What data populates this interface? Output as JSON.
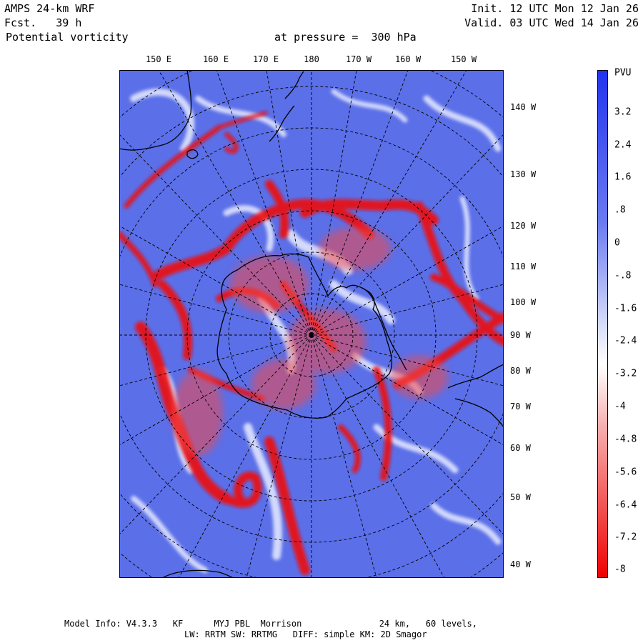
{
  "header": {
    "model": "AMPS 24-km WRF",
    "forecast": "Fcst.   39 h",
    "variable": "Potential vorticity",
    "level": "at pressure =  300 hPa",
    "init": "Init. 12 UTC Mon 12 Jan 26",
    "valid": "Valid. 03 UTC Wed 14 Jan 26"
  },
  "map": {
    "projection": "south-polar-stereographic",
    "longitude_labels": [
      "150 E",
      "160 E",
      "170 E",
      "180",
      "170 W",
      "160 W",
      "150 W"
    ],
    "latitude_labels": [
      "140 W",
      "130 W",
      "120 W",
      "110 W",
      "100 W",
      "90 W",
      "80 W",
      "70 W",
      "60 W",
      "50 W",
      "40 W"
    ],
    "colors": {
      "positive": "#4b5fe6",
      "neutral": "#ffffff",
      "negative": "#ee0000",
      "coastline": "#000000"
    }
  },
  "colorbar": {
    "unit": "PVU",
    "ticks": [
      "3.2",
      "2.4",
      "1.6",
      ".8",
      "0",
      "-.8",
      "-1.6",
      "-2.4",
      "-3.2",
      "-4",
      "-4.8",
      "-5.6",
      "-6.4",
      "-7.2",
      "-8"
    ],
    "range": [
      -8,
      4
    ]
  },
  "footer": {
    "line1": "Model Info: V4.3.3   KF      MYJ PBL  Morrison               24 km,   60 levels,",
    "line2": "LW: RRTM SW: RRTMG   DIFF: simple KM: 2D Smagor"
  }
}
